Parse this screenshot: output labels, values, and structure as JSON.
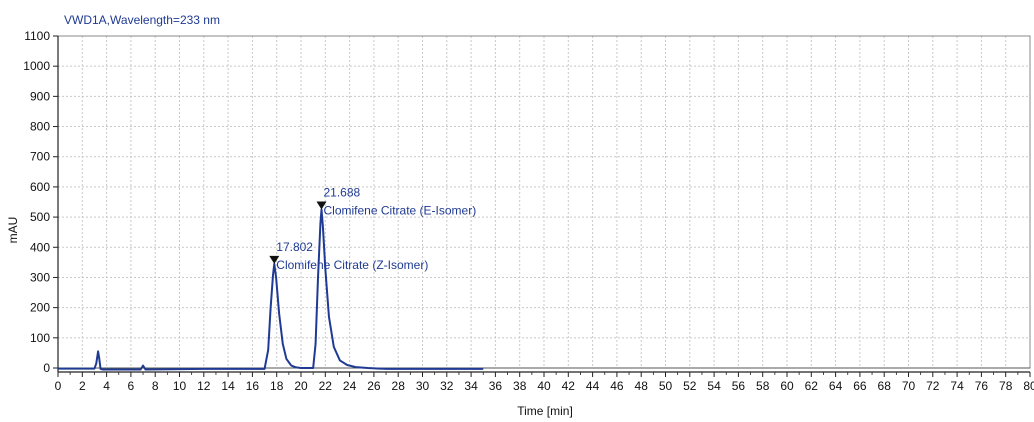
{
  "chart_data": {
    "type": "line",
    "title": "VWD1A,Wavelength=233 nm",
    "xlabel": "Time [min]",
    "ylabel": "mAU",
    "xlim": [
      0,
      80
    ],
    "ylim": [
      0,
      1100
    ],
    "xticks": [
      0,
      2,
      4,
      6,
      8,
      10,
      12,
      14,
      16,
      18,
      20,
      22,
      24,
      26,
      28,
      30,
      32,
      34,
      36,
      38,
      40,
      42,
      44,
      46,
      48,
      50,
      52,
      54,
      56,
      58,
      60,
      62,
      64,
      66,
      68,
      70,
      72,
      74,
      76,
      78,
      80
    ],
    "yticks": [
      0,
      100,
      200,
      300,
      400,
      500,
      600,
      700,
      800,
      900,
      1000,
      1100
    ],
    "grid": true,
    "series": [
      {
        "color": "#1f3a93",
        "x": [
          0,
          3.0,
          3.15,
          3.3,
          3.4,
          3.5,
          3.7,
          4.0,
          6.8,
          7.0,
          7.2,
          12,
          17.0,
          17.3,
          17.5,
          17.7,
          17.802,
          17.95,
          18.2,
          18.5,
          18.8,
          19.2,
          19.6,
          20.0,
          20.5,
          21.0,
          21.2,
          21.4,
          21.6,
          21.688,
          21.8,
          22.0,
          22.3,
          22.7,
          23.2,
          23.8,
          24.5,
          25.5,
          27,
          30,
          35
        ],
        "y": [
          -2,
          -2,
          15,
          55,
          30,
          -3,
          -5,
          -5,
          -5,
          8,
          -5,
          -3,
          -3,
          60,
          200,
          310,
          345,
          300,
          180,
          80,
          30,
          8,
          2,
          0,
          0,
          0,
          80,
          300,
          480,
          525,
          470,
          330,
          170,
          70,
          25,
          10,
          3,
          0,
          -3,
          -3,
          -3
        ]
      }
    ],
    "annotations": [
      {
        "time": "17.802",
        "label": "Clomifene Citrate (Z-Isomer)",
        "x": 17.802,
        "y": 345
      },
      {
        "time": "21.688",
        "label": "Clomifene Citrate (E-Isomer)",
        "x": 21.688,
        "y": 525
      }
    ]
  }
}
